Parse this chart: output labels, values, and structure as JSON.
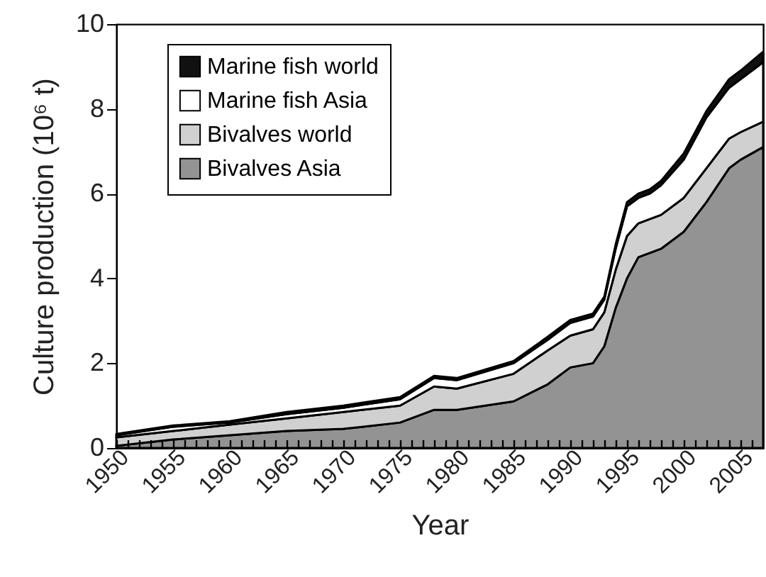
{
  "chart_data": {
    "type": "area",
    "stacked": true,
    "xlabel": "Year",
    "ylabel": "Culture production (10⁶ t)",
    "x": [
      1950,
      1955,
      1960,
      1965,
      1970,
      1975,
      1978,
      1980,
      1985,
      1988,
      1990,
      1992,
      1993,
      1994,
      1995,
      1996,
      1997,
      1998,
      2000,
      2002,
      2004,
      2005,
      2007
    ],
    "series": [
      {
        "name": "Bivalves Asia",
        "color": "#939393",
        "values": [
          0.05,
          0.2,
          0.3,
          0.4,
          0.45,
          0.6,
          0.9,
          0.9,
          1.1,
          1.5,
          1.9,
          2.0,
          2.4,
          3.3,
          4.0,
          4.5,
          4.6,
          4.7,
          5.1,
          5.8,
          6.6,
          6.8,
          7.1
        ]
      },
      {
        "name": "Bivalves world",
        "color": "#d0d0d0",
        "values": [
          0.2,
          0.2,
          0.25,
          0.3,
          0.4,
          0.4,
          0.55,
          0.5,
          0.65,
          0.8,
          0.75,
          0.8,
          0.8,
          0.9,
          1.0,
          0.8,
          0.8,
          0.8,
          0.8,
          0.8,
          0.7,
          0.65,
          0.6
        ]
      },
      {
        "name": "Marine fish Asia",
        "color": "#ffffff",
        "values": [
          0.05,
          0.1,
          0.05,
          0.1,
          0.1,
          0.15,
          0.2,
          0.2,
          0.25,
          0.25,
          0.3,
          0.3,
          0.3,
          0.5,
          0.7,
          0.6,
          0.6,
          0.7,
          0.9,
          1.2,
          1.2,
          1.25,
          1.4
        ]
      },
      {
        "name": "Marine fish world",
        "color": "#111111",
        "values": [
          0.03,
          0.03,
          0.03,
          0.05,
          0.05,
          0.05,
          0.05,
          0.05,
          0.05,
          0.07,
          0.07,
          0.07,
          0.07,
          0.1,
          0.1,
          0.1,
          0.1,
          0.1,
          0.15,
          0.15,
          0.2,
          0.2,
          0.25
        ]
      }
    ],
    "xlim": [
      1950,
      2007
    ],
    "xticks": [
      1950,
      {
        "value": 1951,
        "label": null
      },
      {
        "value": 1952,
        "label": null
      },
      {
        "value": 1953,
        "label": null
      },
      {
        "value": 1954,
        "label": null
      },
      1955,
      {
        "value": 1956,
        "label": null
      },
      {
        "value": 1957,
        "label": null
      },
      {
        "value": 1958,
        "label": null
      },
      {
        "value": 1959,
        "label": null
      },
      1960,
      {
        "value": 1961,
        "label": null
      },
      {
        "value": 1962,
        "label": null
      },
      {
        "value": 1963,
        "label": null
      },
      {
        "value": 1964,
        "label": null
      },
      1965,
      {
        "value": 1966,
        "label": null
      },
      {
        "value": 1967,
        "label": null
      },
      {
        "value": 1968,
        "label": null
      },
      {
        "value": 1969,
        "label": null
      },
      1970,
      {
        "value": 1971,
        "label": null
      },
      {
        "value": 1972,
        "label": null
      },
      {
        "value": 1973,
        "label": null
      },
      {
        "value": 1974,
        "label": null
      },
      1975,
      {
        "value": 1976,
        "label": null
      },
      {
        "value": 1977,
        "label": null
      },
      {
        "value": 1978,
        "label": null
      },
      {
        "value": 1979,
        "label": null
      },
      1980,
      {
        "value": 1981,
        "label": null
      },
      {
        "value": 1982,
        "label": null
      },
      {
        "value": 1983,
        "label": null
      },
      {
        "value": 1984,
        "label": null
      },
      1985,
      {
        "value": 1986,
        "label": null
      },
      {
        "value": 1987,
        "label": null
      },
      {
        "value": 1988,
        "label": null
      },
      {
        "value": 1989,
        "label": null
      },
      1990,
      {
        "value": 1991,
        "label": null
      },
      {
        "value": 1992,
        "label": null
      },
      {
        "value": 1993,
        "label": null
      },
      {
        "value": 1994,
        "label": null
      },
      1995,
      {
        "value": 1996,
        "label": null
      },
      {
        "value": 1997,
        "label": null
      },
      {
        "value": 1998,
        "label": null
      },
      {
        "value": 1999,
        "label": null
      },
      2000,
      {
        "value": 2001,
        "label": null
      },
      {
        "value": 2002,
        "label": null
      },
      {
        "value": 2003,
        "label": null
      },
      {
        "value": 2004,
        "label": null
      },
      2005,
      {
        "value": 2006,
        "label": null
      }
    ],
    "ylim": [
      0,
      10
    ],
    "yticks": [
      0,
      2,
      4,
      6,
      8,
      10
    ],
    "grid": false,
    "legend": "top left"
  }
}
